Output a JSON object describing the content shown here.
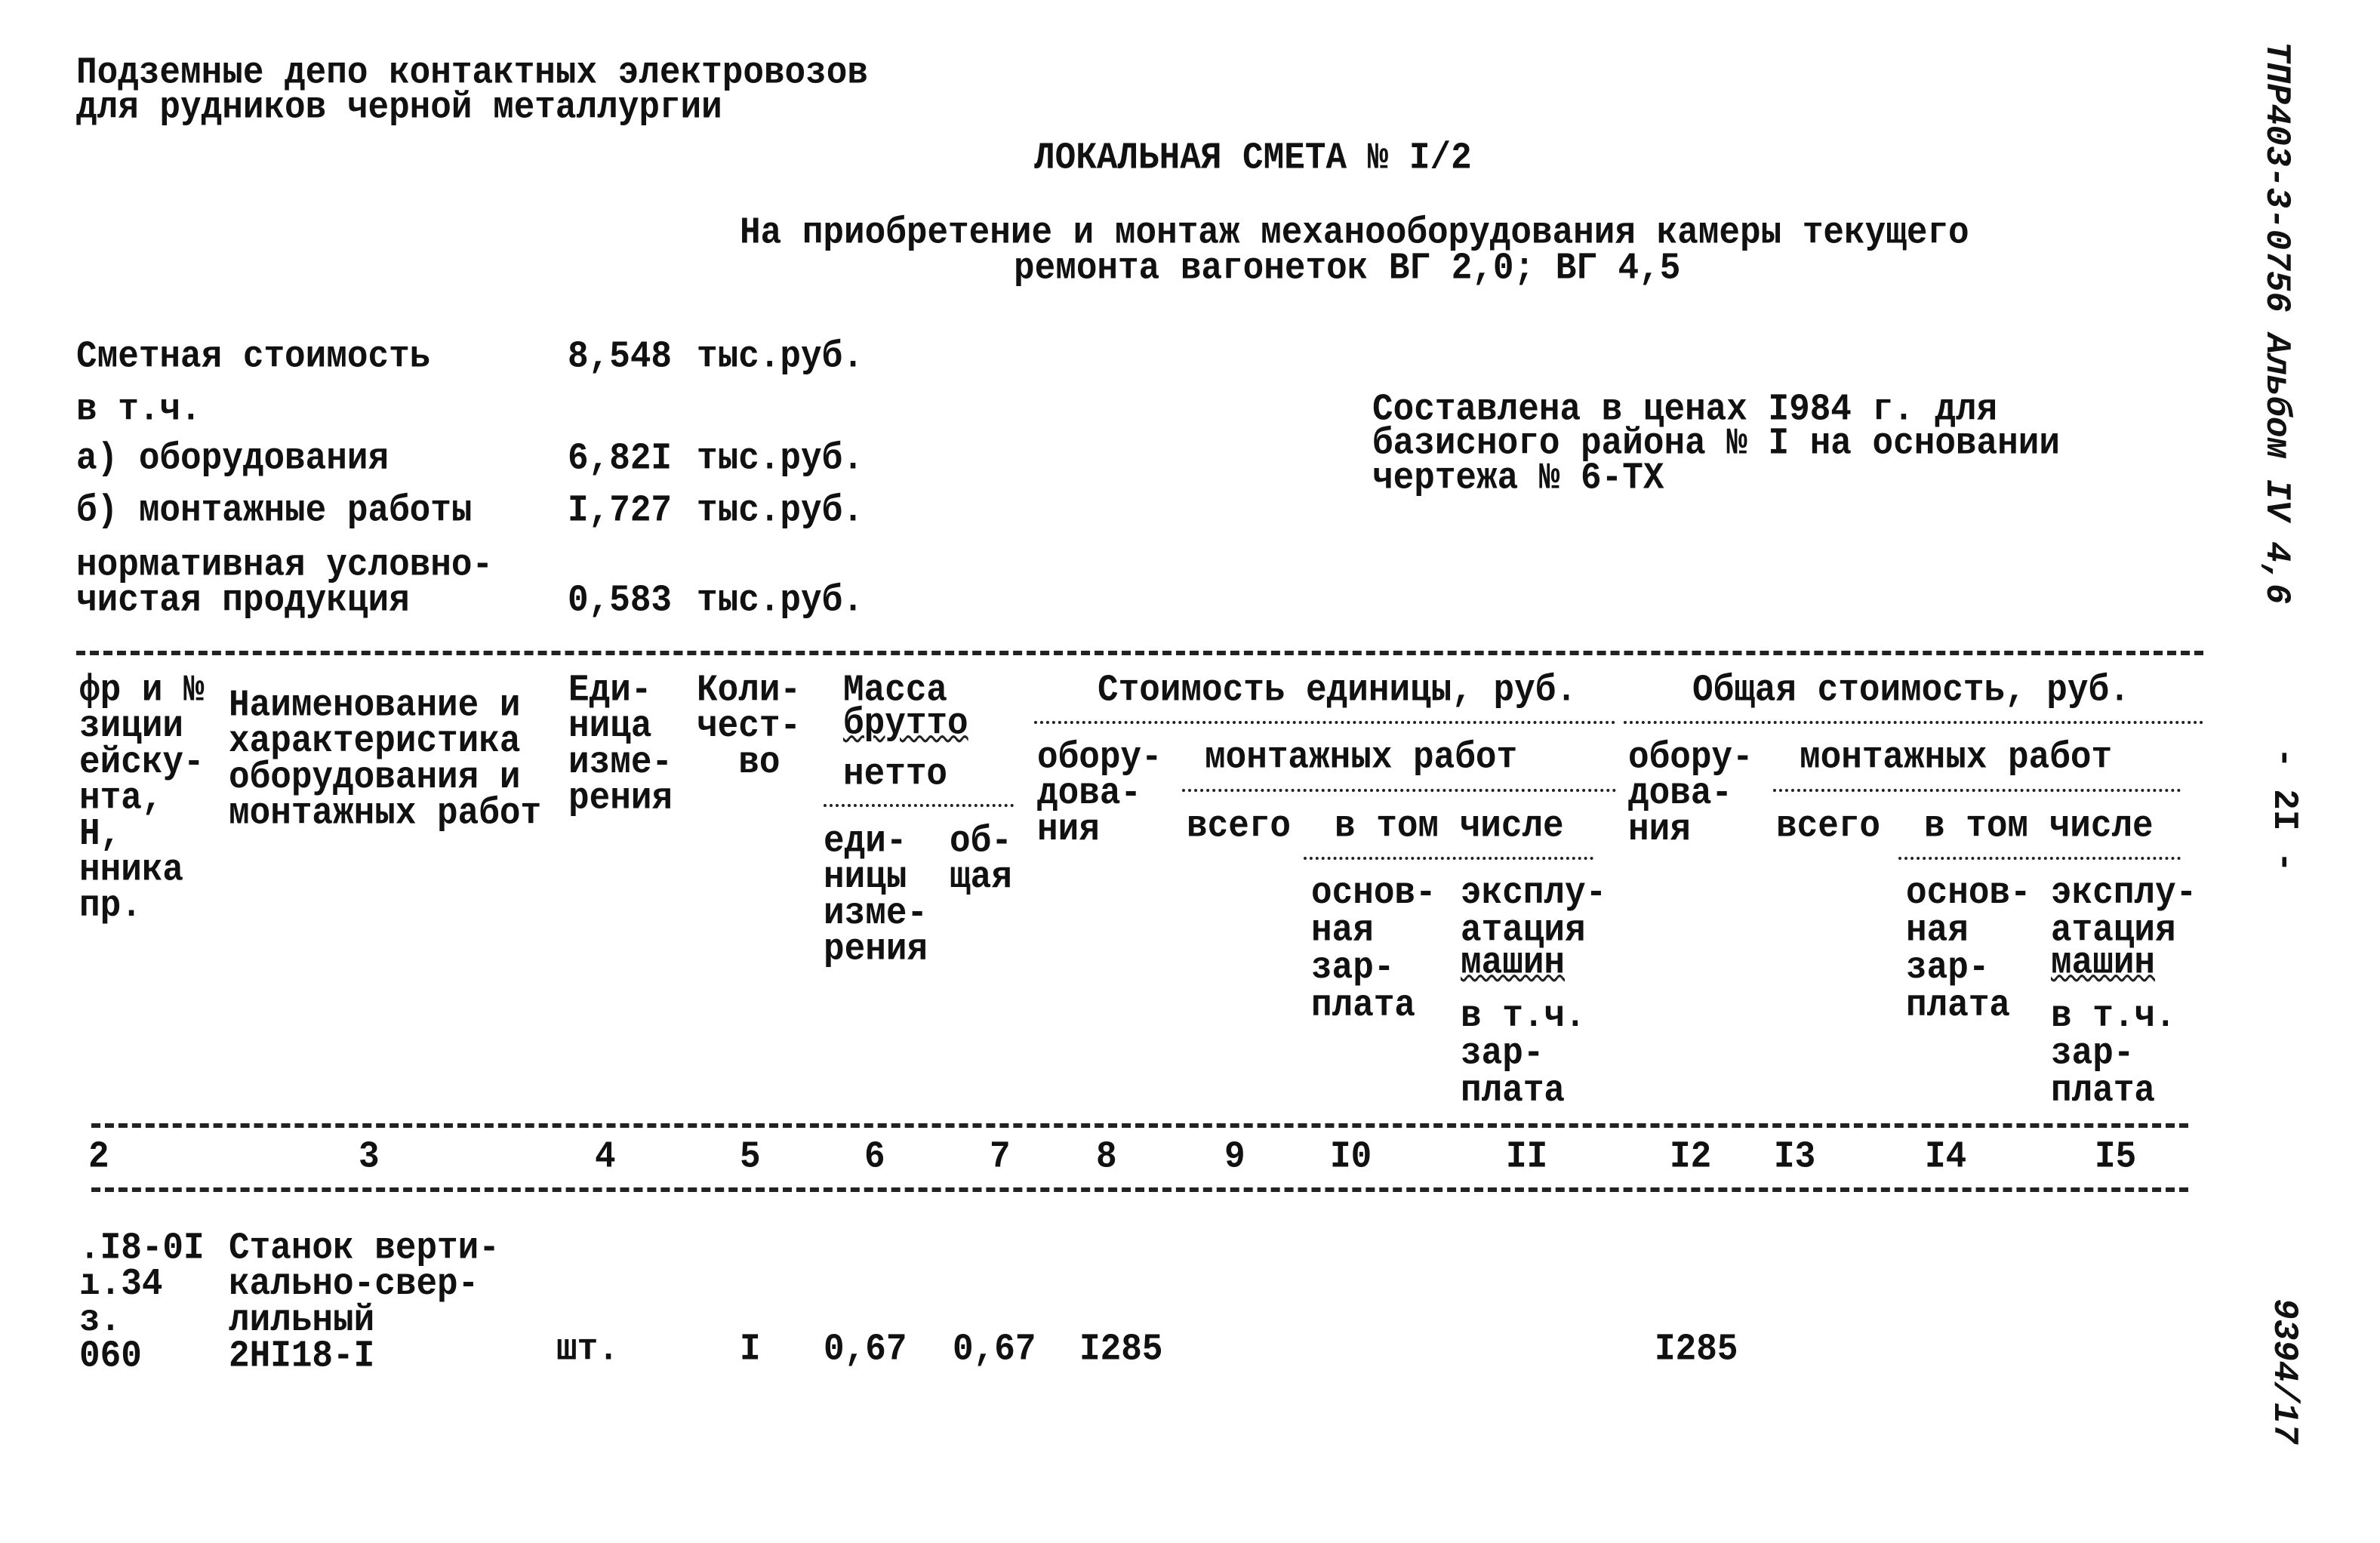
{
  "header": {
    "line1": "Подземные депо контактных электровозов",
    "line2": "для рудников черной металлургии",
    "title": "ЛОКАЛЬНАЯ СМЕТА № I/2",
    "subtitle1": "На приобретение и монтаж механооборудования камеры текущего",
    "subtitle2": "ремонта вагонеток ВГ 2,0; ВГ 4,5"
  },
  "summary": {
    "items": [
      {
        "label": "Сметная стоимость",
        "value": "8,548",
        "unit": "тыс.руб."
      },
      {
        "label": "в т.ч."
      },
      {
        "label": "а) оборудования",
        "value": "6,82I",
        "unit": "тыс.руб."
      },
      {
        "label": "б) монтажные работы",
        "value": "I,727",
        "unit": "тыс.руб."
      },
      {
        "label": "нормативная условно-",
        "label2": "чистая продукция",
        "value": "0,583",
        "unit": "тыс.руб."
      }
    ],
    "note": [
      "Составлена в ценах I984 г. для",
      "базисного района № I на основании",
      "чертежа № 6-ТХ"
    ]
  },
  "table": {
    "headers": {
      "col1": "фр и №\nзиции\nейску-\nнта,\nН,\nнника\nпр.",
      "col2": "Наименование и\nхарактеристика\nоборудования и\nмонтажных работ",
      "unit": "Еди-\nница\nизме-\nрения",
      "qty": "Коли-\nчест-\n  во",
      "mass": "Масса",
      "brutto": "брутто",
      "netto": "нетто",
      "mass_unit": "еди-\nницы\nизме-\nрения",
      "mass_total": "об-\nщая",
      "unit_cost": "Стоимость единицы, руб.",
      "total_cost": "Общая стоимость, руб.",
      "equipment": "обору-\nдова-\nния",
      "mounting": "монтажных работ",
      "all": "всего",
      "incl": "в том числе",
      "base_salary": "основ-\nная\nзар-\nплата",
      "machines": "эксплу-\nатация",
      "machines2": "машин",
      "incl_salary": "в т.ч.\nзар-\nплата"
    },
    "column_numbers": [
      "2",
      "3",
      "4",
      "5",
      "6",
      "7",
      "8",
      "9",
      "I0",
      "II",
      "I2",
      "I3",
      "I4",
      "I5"
    ],
    "rows": [
      {
        "code": ".I8-0I\nı.34\nз.\n060",
        "name": "Станок верти-\nкально-свер-\nлильный\n2НI18-I",
        "unit": "шт.",
        "qty": "I",
        "mass_unit": "0,67",
        "mass_total": "0,67",
        "equipment_unit_cost": "I285",
        "equipment_total_cost": "I285"
      }
    ]
  },
  "margin": {
    "album": "ТПР403-3-0756 Альбом IV 4,6",
    "page": "- 2I -",
    "number": "9394/17"
  }
}
